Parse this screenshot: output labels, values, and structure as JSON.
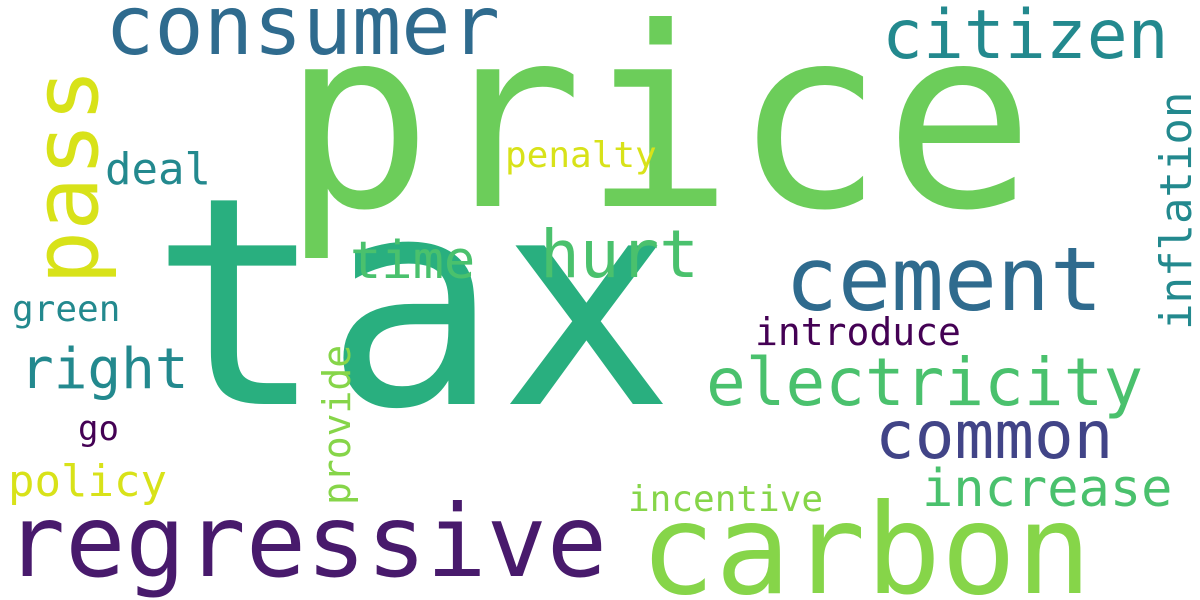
{
  "words": {
    "price": {
      "text": "price",
      "color": "#6ccd5a"
    },
    "tax": {
      "text": "tax",
      "color": "#29af7f"
    },
    "consumer": {
      "text": "consumer",
      "color": "#2f6b8e"
    },
    "citizen": {
      "text": "citizen",
      "color": "#23898e"
    },
    "deal": {
      "text": "deal",
      "color": "#23898e"
    },
    "penalty": {
      "text": "penalty",
      "color": "#d8e219"
    },
    "time": {
      "text": "time",
      "color": "#4ac16d"
    },
    "hurt": {
      "text": "hurt",
      "color": "#4ac16d"
    },
    "cement": {
      "text": "cement",
      "color": "#2f6b8e"
    },
    "green": {
      "text": "green",
      "color": "#23898e"
    },
    "introduce": {
      "text": "introduce",
      "color": "#440154"
    },
    "right": {
      "text": "right",
      "color": "#23898e"
    },
    "electricity": {
      "text": "electricity",
      "color": "#4ac16d"
    },
    "common": {
      "text": "common",
      "color": "#414487"
    },
    "go": {
      "text": "go",
      "color": "#440154"
    },
    "increase": {
      "text": "increase",
      "color": "#4ac16d"
    },
    "policy": {
      "text": "policy",
      "color": "#d8e219"
    },
    "incentive": {
      "text": "incentive",
      "color": "#86d549"
    },
    "regressive": {
      "text": "regressive",
      "color": "#481a6c"
    },
    "carbon": {
      "text": "carbon",
      "color": "#86d549"
    },
    "pass": {
      "text": "pass",
      "color": "#d8e219"
    },
    "provide": {
      "text": "provide",
      "color": "#86d549"
    },
    "inflation": {
      "text": "inflation",
      "color": "#23898e"
    }
  }
}
